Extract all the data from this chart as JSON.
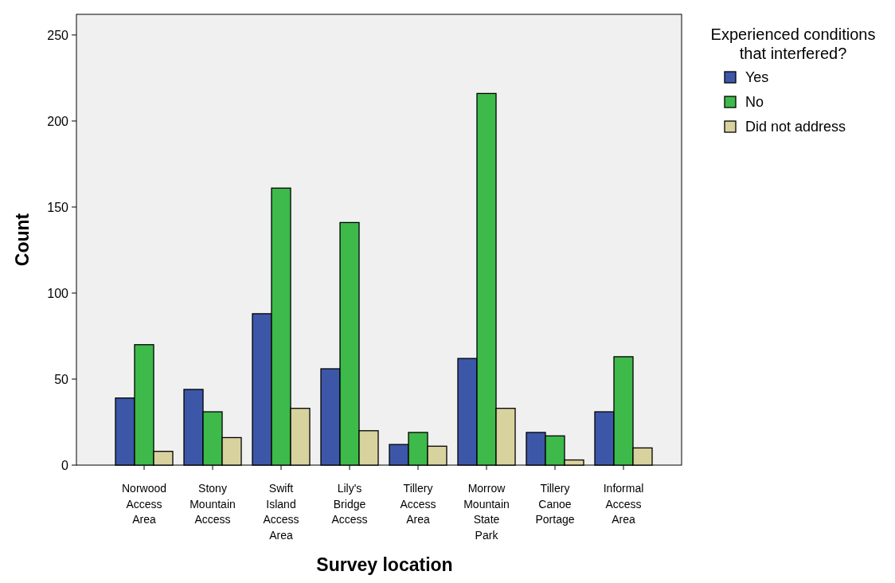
{
  "chart_data": {
    "type": "bar",
    "xlabel": "Survey location",
    "ylabel": "Count",
    "legend_title": "Experienced conditions that interfered?",
    "legend": "top right",
    "grid": false,
    "categories": [
      "Norwood Access Area",
      "Stony Mountain Access",
      "Swift Island Access Area",
      "Lily's Bridge Access",
      "Tillery Access Area",
      "Morrow Mountain State Park",
      "Tillery Canoe Portage",
      "Informal Access Area"
    ],
    "ylim": [
      0,
      262
    ],
    "yticks": [
      0,
      50,
      100,
      150,
      200,
      250
    ],
    "series": [
      {
        "name": "Yes",
        "color": "#3d57a8",
        "values": [
          39,
          44,
          88,
          56,
          12,
          62,
          19,
          31
        ]
      },
      {
        "name": "No",
        "color": "#3dba4a",
        "values": [
          70,
          31,
          161,
          141,
          19,
          216,
          17,
          63
        ]
      },
      {
        "name": "Did not address",
        "color": "#d8d29f",
        "values": [
          8,
          16,
          33,
          20,
          11,
          33,
          3,
          10
        ]
      }
    ]
  }
}
